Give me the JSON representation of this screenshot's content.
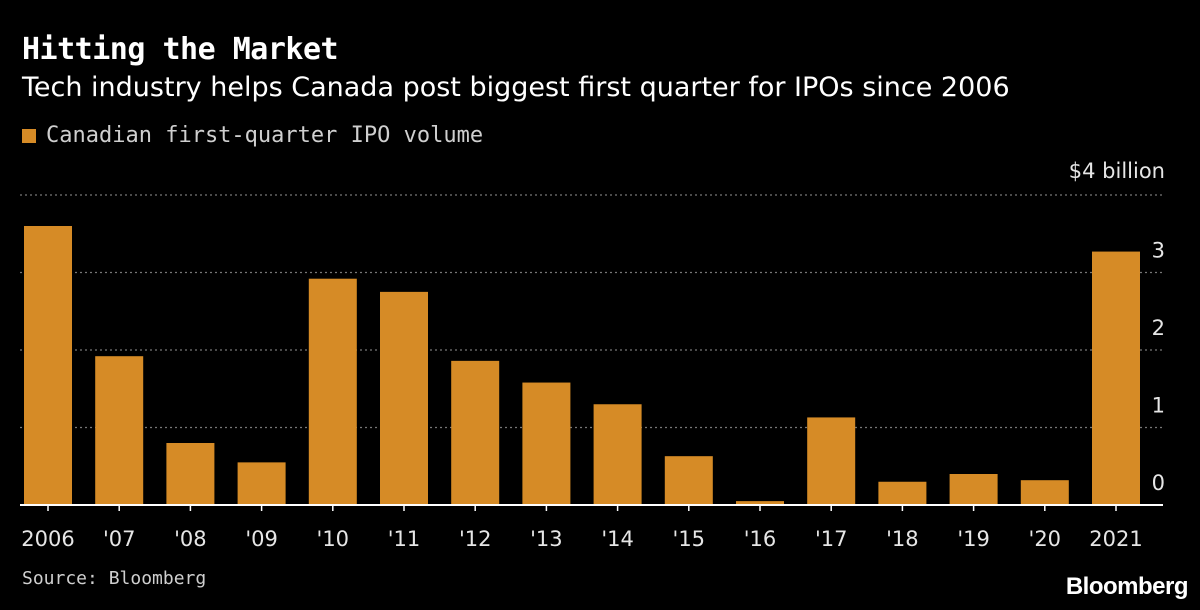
{
  "header": {
    "title": "Hitting the Market",
    "subtitle": "Tech industry helps Canada post biggest first quarter for IPOs since 2006"
  },
  "legend": {
    "label": "Canadian first-quarter IPO volume"
  },
  "footer": {
    "source": "Source: Bloomberg",
    "brand": "Bloomberg"
  },
  "colors": {
    "bar": "#d68b26",
    "grid": "#777777",
    "axis": "#ffffff",
    "background": "#000000"
  },
  "chart_data": {
    "type": "bar",
    "title": "Hitting the Market",
    "subtitle": "Tech industry helps Canada post biggest first quarter for IPOs since 2006",
    "categories": [
      "2006",
      "'07",
      "'08",
      "'09",
      "'10",
      "'11",
      "'12",
      "'13",
      "'14",
      "'15",
      "'16",
      "'17",
      "'18",
      "'19",
      "'20",
      "2021"
    ],
    "series": [
      {
        "name": "Canadian first-quarter IPO volume",
        "values": [
          3.6,
          1.92,
          0.8,
          0.55,
          2.92,
          2.75,
          1.86,
          1.58,
          1.3,
          0.63,
          0.05,
          1.13,
          0.3,
          0.4,
          0.32,
          3.27
        ]
      }
    ],
    "ylim": [
      0,
      4
    ],
    "yticks": [
      0,
      1,
      2,
      3
    ],
    "ytick_labels": [
      "0",
      "1",
      "2",
      "3"
    ],
    "top_label": "$4 billion",
    "grid": true,
    "y_axis_side": "right",
    "legend_position": "top-left"
  }
}
